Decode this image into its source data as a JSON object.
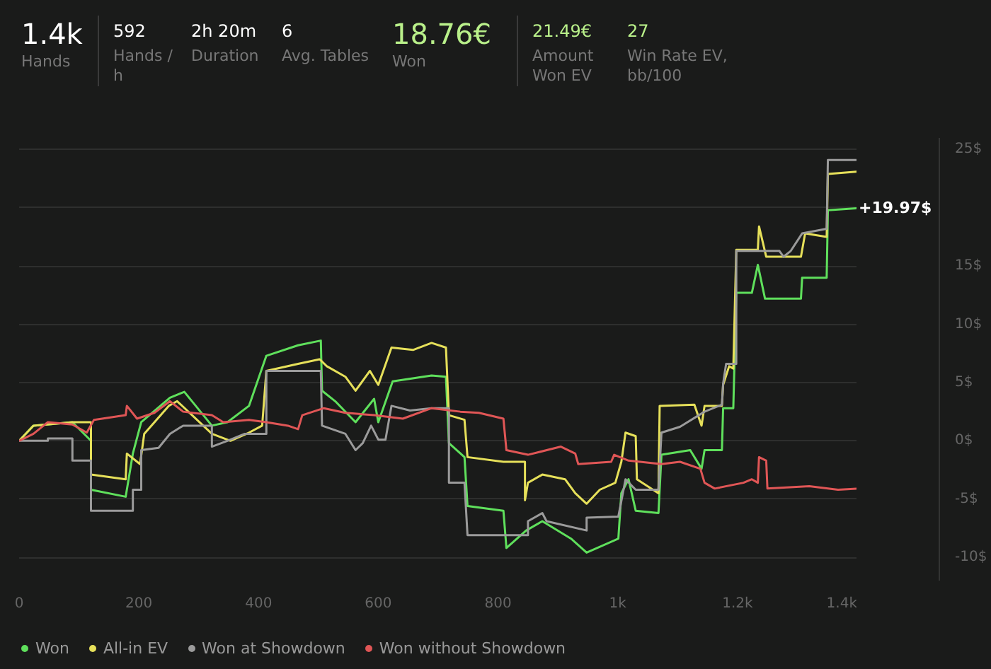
{
  "chart_data": {
    "type": "line",
    "annotations": [
      "1.4k",
      "Hands",
      "592",
      "Hands / h",
      "2h 20m",
      "Duration",
      "6",
      "Avg. Tables",
      "18.76€",
      "Won",
      "21.49€",
      "Amount Won EV",
      "27",
      "Win Rate EV, bb/100",
      {
        "text": "+19.97$",
        "x": 1400,
        "y": 19.97
      }
    ],
    "series": [
      {
        "name": "Won",
        "color": "#5fe05c",
        "x": [
          0,
          24,
          89,
          120,
          120,
          178,
          190,
          204,
          252,
          276,
          322,
          348,
          384,
          413,
          466,
          504,
          506,
          528,
          562,
          593,
          600,
          624,
          689,
          713,
          718,
          744,
          749,
          809,
          814,
          847,
          874,
          922,
          948,
          1001,
          1006,
          1018,
          1030,
          1068,
          1073,
          1121,
          1140,
          1145,
          1174,
          1176,
          1193,
          1198,
          1224,
          1234,
          1246,
          1306,
          1308,
          1349,
          1351,
          1400
        ],
        "values": [
          0,
          1.3,
          1.6,
          0,
          -4.2,
          -4.8,
          -1.1,
          1.6,
          3.7,
          4.2,
          1.3,
          1.6,
          3.0,
          7.3,
          8.2,
          8.6,
          4.3,
          3.4,
          1.6,
          3.6,
          1.6,
          5.1,
          5.6,
          5.5,
          -0.2,
          -1.4,
          -5.6,
          -6.0,
          -9.2,
          -7.7,
          -6.9,
          -8.4,
          -9.6,
          -8.4,
          -4.5,
          -3.3,
          -6.0,
          -6.2,
          -1.2,
          -0.8,
          -2.4,
          -0.8,
          -0.8,
          2.8,
          2.8,
          12.7,
          12.7,
          15.1,
          12.2,
          12.2,
          14.0,
          14.0,
          19.8,
          19.97
        ]
      },
      {
        "name": "All-in EV",
        "color": "#e6e05a",
        "x": [
          0,
          24,
          89,
          120,
          120,
          178,
          180,
          202,
          209,
          250,
          264,
          322,
          353,
          384,
          406,
          413,
          466,
          502,
          514,
          545,
          562,
          586,
          600,
          622,
          658,
          689,
          713,
          718,
          744,
          749,
          809,
          845,
          845,
          850,
          874,
          912,
          929,
          948,
          970,
          996,
          1006,
          1013,
          1030,
          1032,
          1068,
          1070,
          1128,
          1140,
          1145,
          1174,
          1176,
          1186,
          1193,
          1198,
          1234,
          1236,
          1248,
          1306,
          1313,
          1349,
          1351,
          1400
        ],
        "values": [
          0,
          1.3,
          1.6,
          1.6,
          -2.9,
          -3.3,
          -1.1,
          -2.0,
          0.6,
          3.0,
          3.4,
          0.6,
          0,
          0.7,
          1.3,
          6.0,
          6.6,
          7.0,
          6.4,
          5.5,
          4.3,
          6.0,
          4.8,
          8.0,
          7.8,
          8.4,
          8.0,
          2.2,
          1.8,
          -1.4,
          -1.8,
          -1.8,
          -5.1,
          -3.6,
          -2.9,
          -3.3,
          -4.5,
          -5.4,
          -4.2,
          -3.6,
          -1.8,
          0.7,
          0.4,
          -3.3,
          -4.5,
          3.0,
          3.1,
          1.3,
          3.0,
          3.0,
          4.8,
          6.4,
          6.2,
          16.4,
          16.4,
          18.4,
          15.8,
          15.8,
          17.8,
          17.5,
          22.9,
          23.1
        ]
      },
      {
        "name": "Won at Showdown",
        "color": "#9b9b9b",
        "x": [
          0,
          48,
          48,
          89,
          89,
          120,
          120,
          190,
          190,
          204,
          204,
          233,
          252,
          274,
          322,
          322,
          348,
          377,
          413,
          413,
          504,
          506,
          545,
          562,
          574,
          588,
          600,
          612,
          622,
          653,
          689,
          718,
          718,
          744,
          749,
          850,
          850,
          874,
          881,
          948,
          948,
          1001,
          1013,
          1030,
          1068,
          1073,
          1104,
          1145,
          1174,
          1176,
          1181,
          1198,
          1198,
          1270,
          1277,
          1289,
          1308,
          1349,
          1351,
          1400
        ],
        "values": [
          0,
          0,
          0.2,
          0.2,
          -1.7,
          -1.7,
          -6.0,
          -6.0,
          -4.2,
          -4.2,
          -0.8,
          -0.6,
          0.6,
          1.3,
          1.3,
          -0.5,
          0,
          0.6,
          0.6,
          6.0,
          6.0,
          1.3,
          0.6,
          -0.8,
          -0.2,
          1.3,
          0.1,
          0.1,
          3.0,
          2.6,
          2.8,
          2.8,
          -3.6,
          -3.6,
          -8.1,
          -8.1,
          -6.9,
          -6.2,
          -6.9,
          -7.7,
          -6.6,
          -6.5,
          -3.3,
          -4.2,
          -4.2,
          0.7,
          1.2,
          2.5,
          3.1,
          4.9,
          6.6,
          6.6,
          16.3,
          16.3,
          15.8,
          16.3,
          17.8,
          18.2,
          24.1,
          24.1
        ]
      },
      {
        "name": "Won without Showdown",
        "color": "#e05656",
        "x": [
          0,
          24,
          48,
          89,
          113,
          125,
          178,
          180,
          197,
          226,
          252,
          274,
          322,
          341,
          384,
          413,
          449,
          466,
          473,
          509,
          545,
          593,
          641,
          689,
          737,
          768,
          809,
          814,
          850,
          905,
          929,
          934,
          989,
          994,
          1018,
          1073,
          1104,
          1138,
          1145,
          1162,
          1210,
          1224,
          1234,
          1236,
          1248,
          1250,
          1320,
          1368,
          1400
        ],
        "values": [
          0,
          0.6,
          1.6,
          1.4,
          0.7,
          1.8,
          2.2,
          3.0,
          1.9,
          2.4,
          3.4,
          2.5,
          2.2,
          1.6,
          1.8,
          1.6,
          1.3,
          1.0,
          2.2,
          2.8,
          2.4,
          2.2,
          1.9,
          2.8,
          2.5,
          2.4,
          1.9,
          -0.8,
          -1.2,
          -0.5,
          -1.1,
          -2.0,
          -1.8,
          -1.2,
          -1.7,
          -2.0,
          -1.8,
          -2.4,
          -3.6,
          -4.1,
          -3.6,
          -3.3,
          -3.6,
          -1.4,
          -1.7,
          -4.1,
          -3.9,
          -4.2,
          -4.1
        ]
      }
    ],
    "xlim": [
      0,
      1400
    ],
    "xticks": [
      0,
      200,
      400,
      600,
      800,
      {
        "value": 1000,
        "label": "1k"
      },
      {
        "value": 1200,
        "label": "1.2k"
      },
      {
        "value": 1400,
        "label": "1.4k"
      }
    ],
    "ylim": [
      -12,
      26
    ],
    "yticks": [
      {
        "value": -10,
        "label": "-10$"
      },
      {
        "value": -5,
        "label": "-5$"
      },
      {
        "value": 0,
        "label": "0$"
      },
      {
        "value": 5,
        "label": "5$"
      },
      {
        "value": 10,
        "label": "10$"
      },
      {
        "value": 15,
        "label": "15$"
      },
      {
        "value": 20,
        "label": null
      },
      {
        "value": 25,
        "label": "25$"
      }
    ],
    "grid": "y",
    "legend": "bottom",
    "line_style": "solid",
    "marker": "none"
  }
}
